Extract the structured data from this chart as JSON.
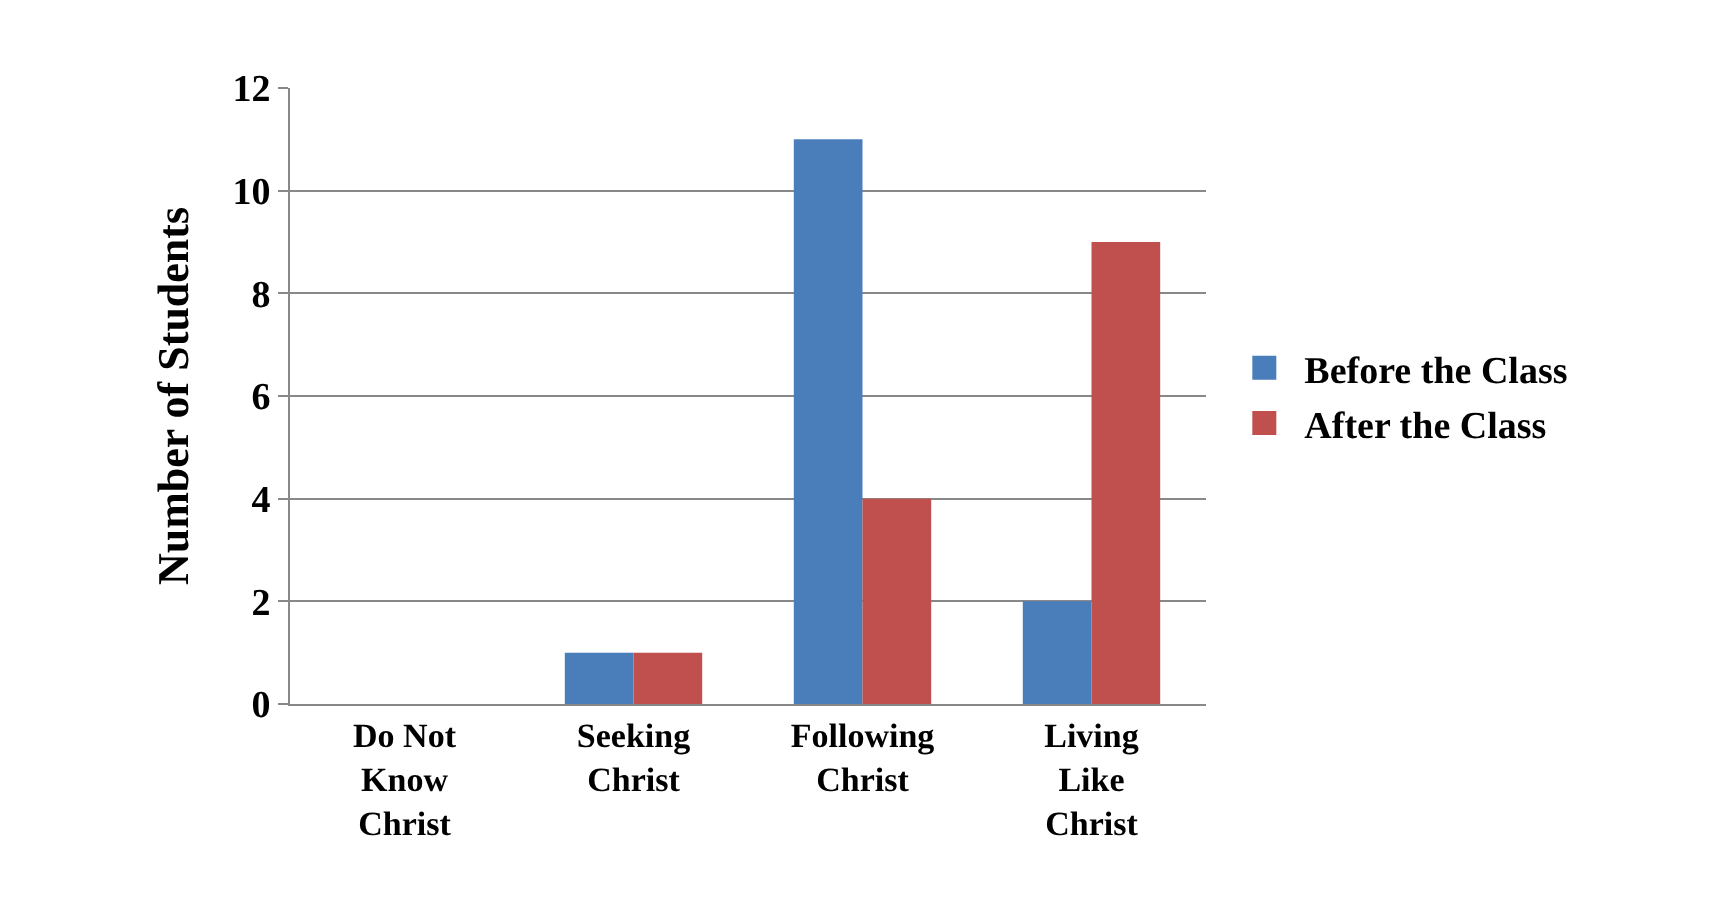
{
  "chart_data": {
    "type": "bar",
    "ylabel": "Number of Students",
    "categories": [
      "Do Not\nKnow\nChrist",
      "Seeking\nChrist",
      "Following\nChrist",
      "Living\nLike\nChrist"
    ],
    "series": [
      {
        "name": "Before the Class",
        "color": "#4a7ebb",
        "values": [
          0,
          1,
          11,
          2
        ]
      },
      {
        "name": "After the Class",
        "color": "#c0504d",
        "values": [
          0,
          1,
          4,
          9
        ]
      }
    ],
    "ylim": [
      0,
      12
    ],
    "yticks": [
      0,
      2,
      4,
      6,
      8,
      10,
      12
    ],
    "grid": "y",
    "legend": "right"
  }
}
